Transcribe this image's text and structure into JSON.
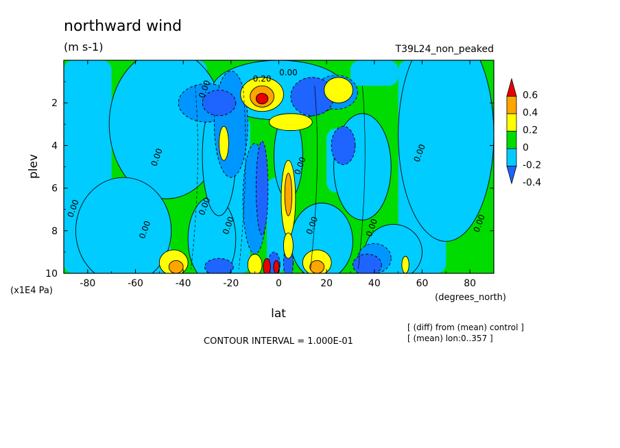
{
  "chart_data": {
    "type": "heatmap",
    "title": "northward wind",
    "units": "(m s-1)",
    "experiment": "T39L24_non_peaked",
    "xlabel": "lat",
    "xunits": "(degrees_north)",
    "ylabel": "plev",
    "yunits": "(x1E4 Pa)",
    "xlim": [
      -90,
      90
    ],
    "ylim": [
      10,
      0
    ],
    "x_ticks": [
      -80,
      -60,
      -40,
      -20,
      0,
      20,
      40,
      60,
      80
    ],
    "x_tick_labels": [
      "-80",
      "-60",
      "-40",
      "-20",
      "0",
      "20",
      "40",
      "60",
      "80"
    ],
    "y_ticks": [
      2,
      4,
      6,
      8,
      10
    ],
    "y_tick_labels": [
      "2",
      "4",
      "6",
      "8",
      "10"
    ],
    "contour_interval_text": "CONTOUR INTERVAL = 1.000E-01",
    "notes": [
      "[ (diff) from (mean) control ]",
      "[ (mean) lon:0..357 ]"
    ],
    "colorbar": {
      "levels": [
        -0.4,
        -0.2,
        0,
        0.2,
        0.4,
        0.6
      ],
      "labels": [
        "-0.4",
        "-0.2",
        "0",
        "0.2",
        "0.4",
        "0.6"
      ],
      "colors": [
        "#1e64ff",
        "#00ccff",
        "#00dc00",
        "#ffff00",
        "#ffa500",
        "#e60000"
      ]
    },
    "contour_labels": [
      {
        "text": "0.20",
        "lat": -7,
        "plev": 1.0
      },
      {
        "text": "0.00",
        "lat": 4,
        "plev": 0.7
      },
      {
        "text": "0.00",
        "lat": -30,
        "plev": 1.4
      },
      {
        "text": "0.00",
        "lat": -50,
        "plev": 4.6
      },
      {
        "text": "0.00",
        "lat": 10,
        "plev": 5.0
      },
      {
        "text": "0.00",
        "lat": 60,
        "plev": 4.4
      },
      {
        "text": "0.00",
        "lat": -85,
        "plev": 7.0
      },
      {
        "text": "0.00",
        "lat": -55,
        "plev": 8.0
      },
      {
        "text": "0.00",
        "lat": -30,
        "plev": 6.9
      },
      {
        "text": "0.00",
        "lat": -20,
        "plev": 7.8
      },
      {
        "text": "0.00",
        "lat": 15,
        "plev": 7.8
      },
      {
        "text": "0.00",
        "lat": 40,
        "plev": 7.9
      },
      {
        "text": "0.00",
        "lat": 85,
        "plev": 7.7
      }
    ],
    "regions": [
      {
        "cls": 3,
        "lat": -47,
        "plev": 3.0,
        "rx": 24,
        "ry": 3.5
      },
      {
        "cls": 3,
        "lat": 70,
        "plev": 3.5,
        "rx": 20,
        "ry": 5.0
      },
      {
        "cls": 3,
        "lat": -65,
        "plev": 8.0,
        "rx": 20,
        "ry": 2.5
      },
      {
        "cls": 3,
        "lat": 35,
        "plev": 5.0,
        "rx": 12,
        "ry": 2.5
      },
      {
        "cls": 3,
        "lat": -28,
        "plev": 8.4,
        "rx": 10,
        "ry": 2.0
      },
      {
        "cls": 3,
        "lat": 18,
        "plev": 8.5,
        "rx": 13,
        "ry": 1.8
      },
      {
        "cls": 3,
        "lat": 48,
        "plev": 9.0,
        "rx": 12,
        "ry": 1.3
      },
      {
        "cls": 3,
        "lat": 0,
        "plev": 1.4,
        "rx": 28,
        "ry": 1.4
      },
      {
        "cls": 3,
        "lat": 4,
        "plev": 4.5,
        "rx": 6,
        "ry": 2.0
      },
      {
        "cls": 3,
        "lat": -25,
        "plev": 4.5,
        "rx": 7,
        "ry": 2.8
      },
      {
        "cls": 1,
        "lat": -30,
        "plev": 2.0,
        "rx": 12,
        "ry": 0.9
      },
      {
        "cls": 1,
        "lat": -20,
        "plev": 3.0,
        "rx": 7,
        "ry": 2.5
      },
      {
        "cls": 1,
        "lat": 24,
        "plev": 1.5,
        "rx": 9,
        "ry": 0.8
      },
      {
        "cls": 1,
        "lat": -10,
        "plev": 6.5,
        "rx": 5,
        "ry": 2.6
      },
      {
        "cls": 1,
        "lat": 40,
        "plev": 9.3,
        "rx": 7,
        "ry": 0.7
      },
      {
        "cls": 0,
        "lat": -25,
        "plev": 2.0,
        "rx": 7,
        "ry": 0.6
      },
      {
        "cls": 0,
        "lat": 14,
        "plev": 1.7,
        "rx": 9,
        "ry": 0.9
      },
      {
        "cls": 0,
        "lat": 27,
        "plev": 4.0,
        "rx": 5,
        "ry": 0.9
      },
      {
        "cls": 0,
        "lat": -7,
        "plev": 6.0,
        "rx": 2.5,
        "ry": 2.2
      },
      {
        "cls": 0,
        "lat": -25,
        "plev": 9.7,
        "rx": 6,
        "ry": 0.4
      },
      {
        "cls": 0,
        "lat": 37,
        "plev": 9.6,
        "rx": 6,
        "ry": 0.5
      },
      {
        "cls": 0,
        "lat": 4,
        "plev": 9.5,
        "rx": 2,
        "ry": 0.8
      },
      {
        "cls": 0,
        "lat": -2,
        "plev": 9.6,
        "rx": 2.5,
        "ry": 0.6
      },
      {
        "cls": 4,
        "lat": -7,
        "plev": 1.6,
        "rx": 9,
        "ry": 0.8
      },
      {
        "cls": 4,
        "lat": 25,
        "plev": 1.4,
        "rx": 6,
        "ry": 0.6
      },
      {
        "cls": 4,
        "lat": 5,
        "plev": 2.9,
        "rx": 9,
        "ry": 0.4
      },
      {
        "cls": 4,
        "lat": 4,
        "plev": 6.5,
        "rx": 3,
        "ry": 1.8
      },
      {
        "cls": 4,
        "lat": -23,
        "plev": 3.9,
        "rx": 2,
        "ry": 0.8
      },
      {
        "cls": 4,
        "lat": -44,
        "plev": 9.5,
        "rx": 6,
        "ry": 0.6
      },
      {
        "cls": 4,
        "lat": 16,
        "plev": 9.5,
        "rx": 6,
        "ry": 0.6
      },
      {
        "cls": 4,
        "lat": -10,
        "plev": 9.6,
        "rx": 3,
        "ry": 0.5
      },
      {
        "cls": 4,
        "lat": 4,
        "plev": 8.7,
        "rx": 2,
        "ry": 0.6
      },
      {
        "cls": 4,
        "lat": 53,
        "plev": 9.6,
        "rx": 1.5,
        "ry": 0.4
      },
      {
        "cls": 5,
        "lat": -7,
        "plev": 1.7,
        "rx": 5,
        "ry": 0.5
      },
      {
        "cls": 5,
        "lat": 4,
        "plev": 6.3,
        "rx": 1.5,
        "ry": 1.0
      },
      {
        "cls": 5,
        "lat": -43,
        "plev": 9.7,
        "rx": 3,
        "ry": 0.3
      },
      {
        "cls": 5,
        "lat": 16,
        "plev": 9.7,
        "rx": 3,
        "ry": 0.3
      },
      {
        "cls": 6,
        "lat": -7,
        "plev": 1.8,
        "rx": 2.5,
        "ry": 0.25
      },
      {
        "cls": 6,
        "lat": -5,
        "plev": 9.7,
        "rx": 1.5,
        "ry": 0.4
      },
      {
        "cls": 6,
        "lat": -1,
        "plev": 9.7,
        "rx": 1.2,
        "ry": 0.3
      }
    ]
  }
}
